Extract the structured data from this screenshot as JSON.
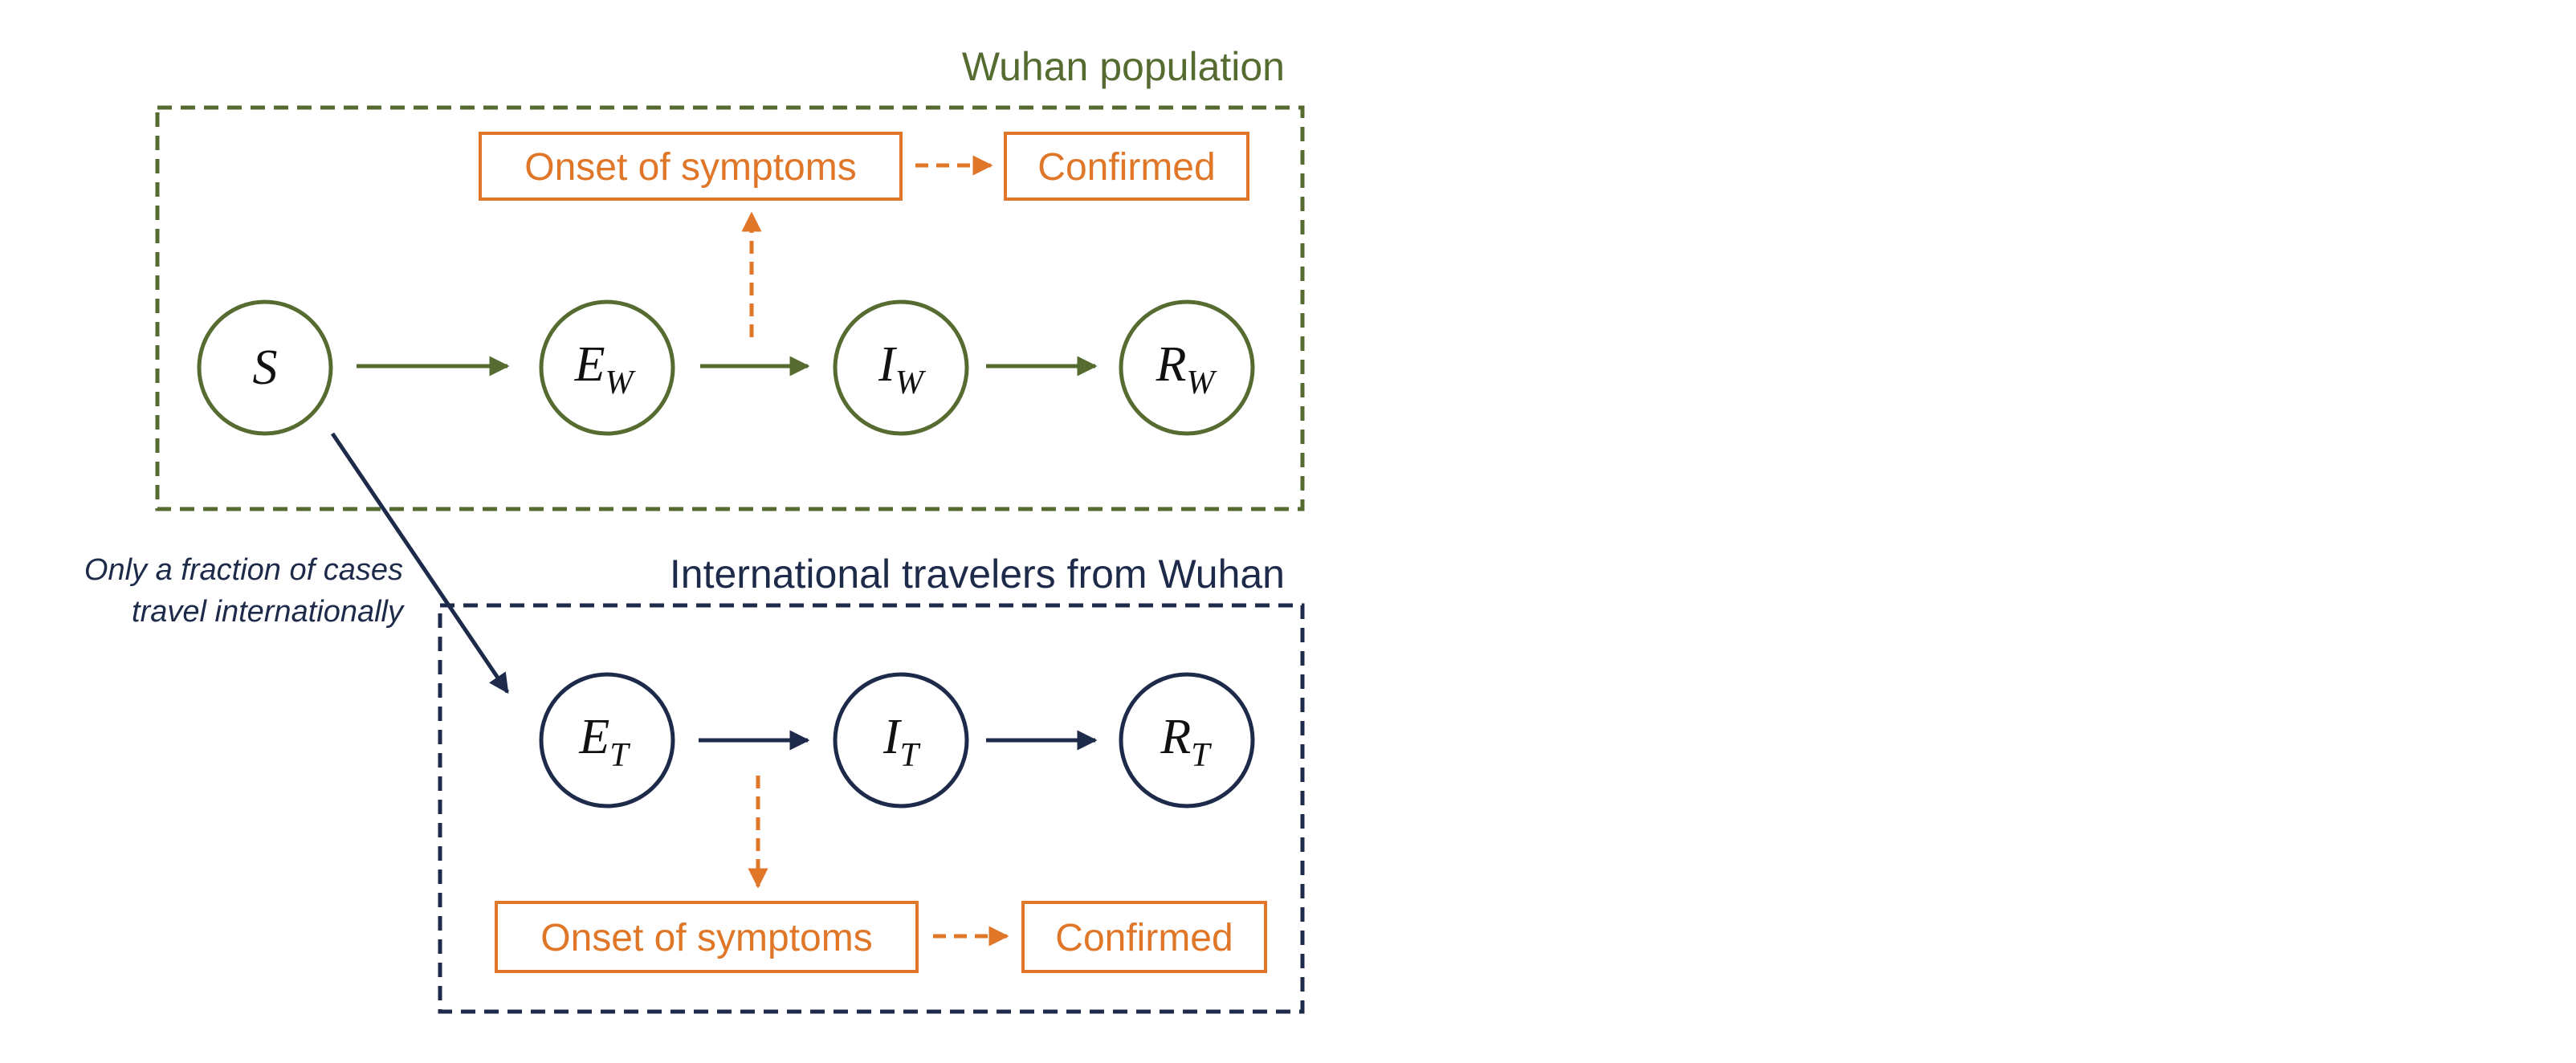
{
  "colors": {
    "wuhan": "#556b30",
    "travel": "#1d2a4a",
    "symptom": "#e07628",
    "background": "#ffffff"
  },
  "wuhan_group": {
    "title": "Wuhan population",
    "nodes": [
      {
        "main": "S",
        "sub": ""
      },
      {
        "main": "E",
        "sub": "W"
      },
      {
        "main": "I",
        "sub": "W"
      },
      {
        "main": "R",
        "sub": "W"
      }
    ],
    "onset_label": "Onset of symptoms",
    "confirmed_label": "Confirmed"
  },
  "travel_group": {
    "title": "International travelers from Wuhan",
    "nodes": [
      {
        "main": "E",
        "sub": "T"
      },
      {
        "main": "I",
        "sub": "T"
      },
      {
        "main": "R",
        "sub": "T"
      }
    ],
    "onset_label": "Onset of symptoms",
    "confirmed_label": "Confirmed"
  },
  "note": {
    "line1": "Only a fraction of cases",
    "line2": "travel internationally"
  }
}
